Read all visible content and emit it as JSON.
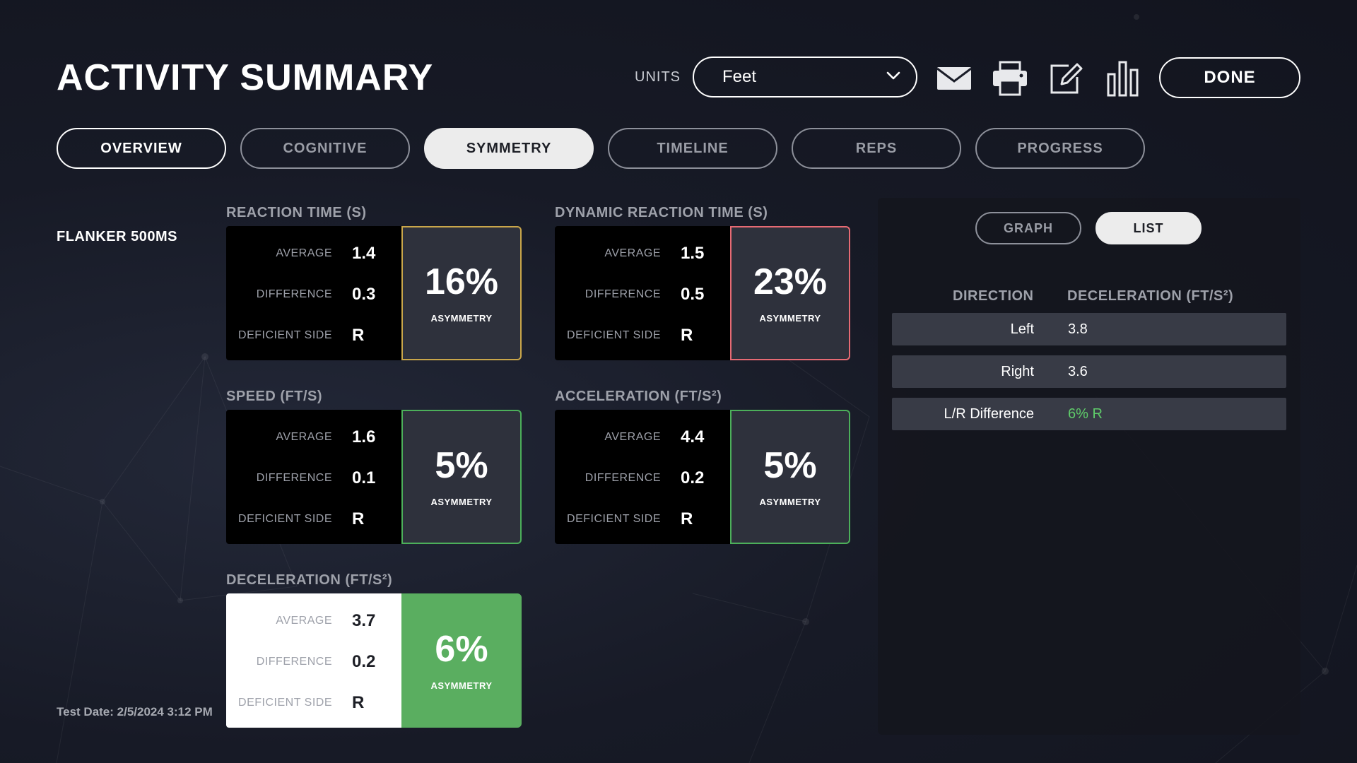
{
  "header": {
    "title": "ACTIVITY SUMMARY",
    "units_label": "UNITS",
    "units_value": "Feet",
    "done_label": "DONE",
    "icons": [
      "envelope-icon",
      "printer-icon",
      "edit-icon",
      "bar-chart-icon"
    ]
  },
  "tabs": [
    {
      "label": "OVERVIEW"
    },
    {
      "label": "COGNITIVE"
    },
    {
      "label": "SYMMETRY"
    },
    {
      "label": "TIMELINE"
    },
    {
      "label": "REPS"
    },
    {
      "label": "PROGRESS"
    }
  ],
  "active_tab": "SYMMETRY",
  "activity": {
    "name": "FLANKER 500MS",
    "test_date": "Test Date: 2/5/2024 3:12 PM"
  },
  "labels": {
    "average": "AVERAGE",
    "difference": "DIFFERENCE",
    "deficient_side": "DEFICIENT SIDE",
    "asymmetry": "ASYMMETRY"
  },
  "metrics": {
    "reaction_time": {
      "title": "REACTION TIME (S)",
      "average": "1.4",
      "difference": "0.3",
      "deficient_side": "R",
      "asymmetry": "16%"
    },
    "dynamic_reaction_time": {
      "title": "DYNAMIC REACTION TIME (S)",
      "average": "1.5",
      "difference": "0.5",
      "deficient_side": "R",
      "asymmetry": "23%"
    },
    "speed": {
      "title": "SPEED (FT/S)",
      "average": "1.6",
      "difference": "0.1",
      "deficient_side": "R",
      "asymmetry": "5%"
    },
    "acceleration": {
      "title": "ACCELERATION (FT/S²)",
      "average": "4.4",
      "difference": "0.2",
      "deficient_side": "R",
      "asymmetry": "5%"
    },
    "deceleration": {
      "title": "DECELERATION (FT/S²)",
      "average": "3.7",
      "difference": "0.2",
      "deficient_side": "R",
      "asymmetry": "6%"
    }
  },
  "status_colors": {
    "gold": "#c9a64a",
    "red": "#e66a73",
    "green": "#4caf5a",
    "green_fill": "#5aae60"
  },
  "panel": {
    "toggles": {
      "graph": "GRAPH",
      "list": "LIST"
    },
    "active_toggle": "LIST",
    "columns": {
      "direction": "DIRECTION",
      "value": "DECELERATION (FT/S²)"
    },
    "rows": [
      {
        "direction": "Left",
        "value": "3.8"
      },
      {
        "direction": "Right",
        "value": "3.6"
      },
      {
        "direction": "L/R Difference",
        "value": "6% R"
      }
    ]
  }
}
